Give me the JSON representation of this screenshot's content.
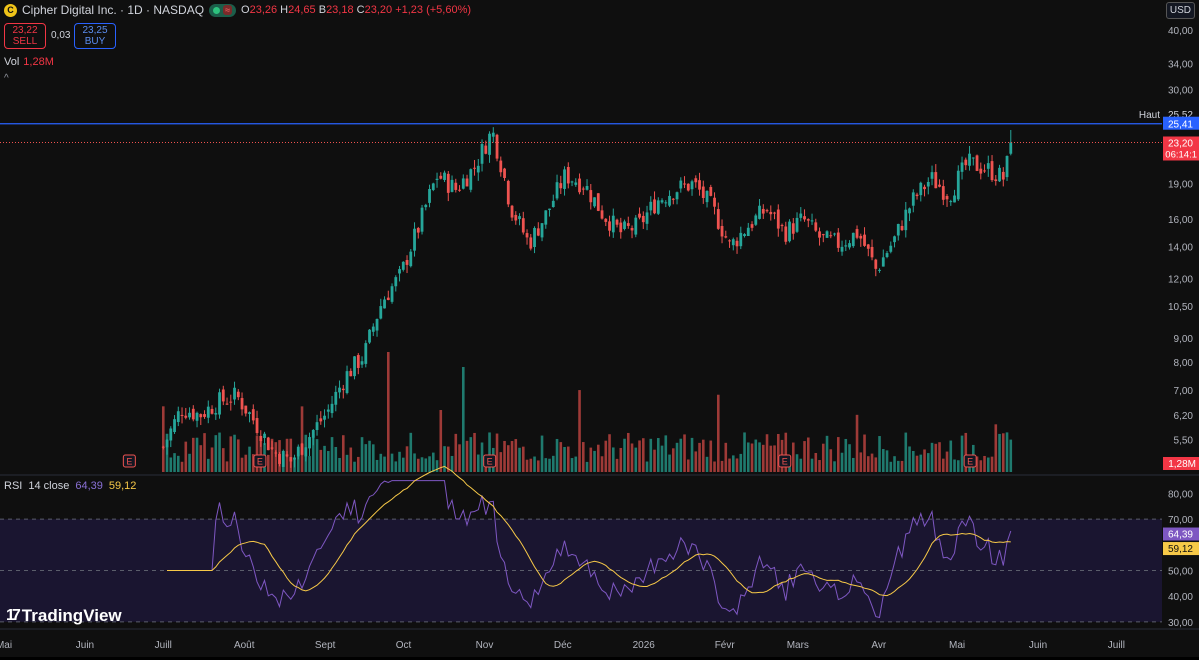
{
  "header": {
    "symbol_title": "Cipher Digital Inc. · 1D · NASDAQ",
    "symbol_icon_letter": "C",
    "status_wave": "≈",
    "ohlc": [
      {
        "k": "O",
        "v": "23,26"
      },
      {
        "k": "H",
        "v": "24,65"
      },
      {
        "k": "B",
        "v": "23,18"
      },
      {
        "k": "C",
        "v": "23,20"
      },
      {
        "k": "",
        "v": "+1,23 (+5,60%)"
      }
    ],
    "sell_price": "23,22",
    "sell_label": "SELL",
    "spread": "0,03",
    "buy_price": "23,25",
    "buy_label": "BUY",
    "vol_label": "Vol",
    "vol_value": "1,28M",
    "collapse_glyph": "^",
    "currency": "USD"
  },
  "colors": {
    "up": "#26a69a",
    "down": "#ef5350",
    "vol_up": "#1f7a6e",
    "vol_down": "#9e3a37",
    "rsi": "#7e57c2",
    "rsi_ma": "#f7c948",
    "line": "#2962ff",
    "background": "#0f0f0f"
  },
  "chart_data": {
    "type": "candlestick",
    "symbol": "Cipher Digital Inc.",
    "interval": "1D",
    "exchange": "NASDAQ",
    "price_scale": "log",
    "y_ticks": [
      "40,00",
      "34,00",
      "30,00",
      "19,00",
      "16,00",
      "14,00",
      "12,00",
      "10,50",
      "9,00",
      "8,00",
      "7,00",
      "6,20",
      "5,50",
      "4,90"
    ],
    "y_tick_values": [
      40,
      34,
      30,
      19,
      16,
      14,
      12,
      10.5,
      9,
      8,
      7,
      6.2,
      5.5,
      4.9
    ],
    "x_ticks": [
      "Mai",
      "Juin",
      "Juill",
      "Août",
      "Sept",
      "Oct",
      "Nov",
      "Déc",
      "2026",
      "Févr",
      "Mars",
      "Avr",
      "Mai",
      "Juin",
      "Juill"
    ],
    "ylim": [
      4.7,
      42
    ],
    "close_series": [
      {
        "d": "2025-07-01",
        "c": 5.3
      },
      {
        "d": "2025-07-08",
        "c": 6.4
      },
      {
        "d": "2025-07-15",
        "c": 6.2
      },
      {
        "d": "2025-07-22",
        "c": 6.6
      },
      {
        "d": "2025-07-29",
        "c": 6.8
      },
      {
        "d": "2025-08-05",
        "c": 6.0
      },
      {
        "d": "2025-08-12",
        "c": 5.2
      },
      {
        "d": "2025-08-19",
        "c": 4.95
      },
      {
        "d": "2025-08-26",
        "c": 5.6
      },
      {
        "d": "2025-09-02",
        "c": 6.3
      },
      {
        "d": "2025-09-09",
        "c": 7.5
      },
      {
        "d": "2025-09-16",
        "c": 8.3
      },
      {
        "d": "2025-09-23",
        "c": 10.8
      },
      {
        "d": "2025-09-30",
        "c": 12.2
      },
      {
        "d": "2025-10-07",
        "c": 15.5
      },
      {
        "d": "2025-10-14",
        "c": 19.8
      },
      {
        "d": "2025-10-21",
        "c": 18.5
      },
      {
        "d": "2025-10-28",
        "c": 20.5
      },
      {
        "d": "2025-11-04",
        "c": 24.5
      },
      {
        "d": "2025-11-11",
        "c": 17.0
      },
      {
        "d": "2025-11-18",
        "c": 14.2
      },
      {
        "d": "2025-11-25",
        "c": 16.5
      },
      {
        "d": "2025-12-02",
        "c": 19.8
      },
      {
        "d": "2025-12-09",
        "c": 19.0
      },
      {
        "d": "2025-12-16",
        "c": 16.5
      },
      {
        "d": "2025-12-23",
        "c": 15.0
      },
      {
        "d": "2025-12-30",
        "c": 15.5
      },
      {
        "d": "2026-01-06",
        "c": 17.5
      },
      {
        "d": "2026-01-13",
        "c": 18.5
      },
      {
        "d": "2026-01-20",
        "c": 19.0
      },
      {
        "d": "2026-01-27",
        "c": 17.0
      },
      {
        "d": "2026-02-03",
        "c": 14.0
      },
      {
        "d": "2026-02-10",
        "c": 15.5
      },
      {
        "d": "2026-02-17",
        "c": 16.8
      },
      {
        "d": "2026-02-24",
        "c": 15.0
      },
      {
        "d": "2026-03-03",
        "c": 16.0
      },
      {
        "d": "2026-03-10",
        "c": 14.5
      },
      {
        "d": "2026-03-17",
        "c": 14.2
      },
      {
        "d": "2026-03-24",
        "c": 15.0
      },
      {
        "d": "2026-03-31",
        "c": 12.5
      },
      {
        "d": "2026-04-07",
        "c": 14.5
      },
      {
        "d": "2026-04-14",
        "c": 17.5
      },
      {
        "d": "2026-04-21",
        "c": 19.5
      },
      {
        "d": "2026-04-28",
        "c": 18.0
      },
      {
        "d": "2026-05-05",
        "c": 21.0
      },
      {
        "d": "2026-05-12",
        "c": 20.5
      },
      {
        "d": "2026-05-19",
        "c": 19.5
      },
      {
        "d": "2026-05-22",
        "c": 23.2
      }
    ],
    "price_lines": [
      {
        "label": "Haut",
        "value": "25,52",
        "num": 25.52
      },
      {
        "label": "",
        "value": "25,41",
        "num": 25.41,
        "style": "solid"
      },
      {
        "label": "",
        "value": "23,20",
        "num": 23.2,
        "sub": "06:14:1",
        "style": "dotted"
      }
    ],
    "volume": {
      "last_label": "1,28M"
    },
    "earnings_markers": [
      {
        "d": "2025-06-18",
        "label": "E"
      },
      {
        "d": "2025-08-07",
        "label": "E"
      },
      {
        "d": "2025-11-03",
        "label": "E"
      },
      {
        "d": "2026-02-24",
        "label": "E"
      },
      {
        "d": "2026-05-06",
        "label": "E"
      }
    ],
    "rsi": {
      "label": "RSI",
      "params": "14 close",
      "value": "64,39",
      "ma_value": "59,12",
      "value_num": 64.39,
      "ma_num": 59.12,
      "ticks": [
        "80,00",
        "70,00",
        "60,00",
        "50,00",
        "40,00",
        "30,00"
      ],
      "tick_values": [
        80,
        70,
        60,
        50,
        40,
        30
      ],
      "band": [
        30,
        70
      ],
      "ylim": [
        28,
        86
      ]
    }
  },
  "branding": {
    "logo_mark": "17",
    "logo_text": "TradingView"
  }
}
